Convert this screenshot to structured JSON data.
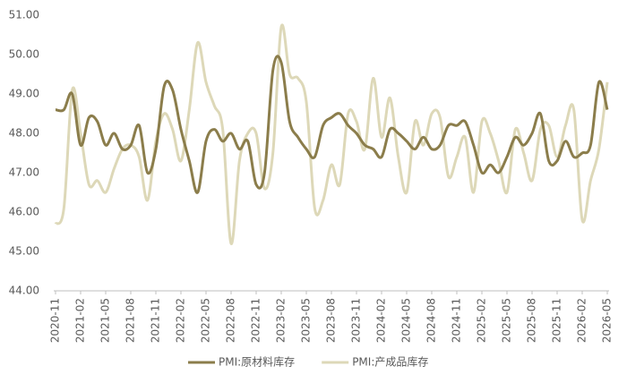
{
  "chart_data": {
    "type": "line",
    "categories": [
      "2020-11",
      null,
      null,
      "2021-02",
      null,
      null,
      "2021-05",
      null,
      null,
      "2021-08",
      null,
      null,
      "2021-11",
      null,
      null,
      "2022-02",
      null,
      null,
      "2022-05",
      null,
      null,
      "2022-08",
      null,
      null,
      "2022-11",
      null,
      null,
      "2023-02",
      null,
      null,
      "2023-05",
      null,
      null,
      "2023-08",
      null,
      null,
      "2023-11",
      null,
      null,
      "2024-02",
      null,
      null,
      "2024-05",
      null,
      null,
      "2024-08",
      null,
      null,
      "2024-11",
      null,
      null,
      "2025-02",
      null,
      null,
      "2025-05",
      null,
      null,
      "2025-08",
      null,
      null,
      "2025-11",
      null,
      null,
      "2026-02",
      null,
      null,
      "2026-05"
    ],
    "series": [
      {
        "name": "PMI:原材料库存",
        "color": "#8b7d4b",
        "values": [
          48.6,
          48.6,
          49.0,
          47.7,
          48.4,
          48.3,
          47.7,
          48.0,
          47.6,
          47.7,
          48.2,
          47.0,
          47.6,
          49.2,
          49.1,
          48.1,
          47.3,
          46.5,
          47.8,
          48.1,
          47.8,
          48.0,
          47.6,
          47.8,
          46.7,
          47.0,
          49.6,
          49.8,
          48.3,
          47.9,
          47.6,
          47.4,
          48.2,
          48.4,
          48.5,
          48.2,
          48.0,
          47.7,
          47.6,
          47.4,
          48.1,
          48.0,
          47.8,
          47.6,
          47.9,
          47.6,
          47.7,
          48.2,
          48.2,
          48.3,
          47.7,
          47.0,
          47.2,
          47.0,
          47.4,
          47.9,
          47.7,
          48.0,
          48.5,
          47.3,
          47.3,
          47.8,
          47.4,
          47.5,
          47.7,
          49.3,
          48.6
        ]
      },
      {
        "name": "PMI:产成品库存",
        "color": "#ddd8b8",
        "values": [
          45.7,
          46.1,
          49.1,
          48.0,
          46.7,
          46.8,
          46.5,
          47.1,
          47.6,
          47.7,
          47.4,
          46.3,
          47.8,
          48.5,
          48.1,
          47.3,
          48.6,
          50.3,
          49.3,
          48.7,
          48.1,
          45.2,
          47.3,
          48.0,
          48.0,
          46.6,
          47.5,
          50.7,
          49.5,
          49.4,
          48.8,
          46.1,
          46.3,
          47.2,
          46.7,
          48.5,
          48.3,
          47.6,
          49.4,
          47.9,
          48.9,
          47.4,
          46.5,
          48.3,
          47.7,
          48.5,
          48.4,
          46.9,
          47.4,
          47.9,
          46.5,
          48.3,
          48.0,
          47.3,
          46.5,
          48.1,
          47.5,
          46.8,
          48.1,
          48.2,
          47.4,
          48.2,
          48.6,
          45.8,
          46.8,
          47.6,
          49.3
        ]
      }
    ],
    "ylim": [
      44,
      51
    ],
    "yticks": [
      {
        "value": 44,
        "label": "44.00"
      },
      {
        "value": 45,
        "label": "45.00"
      },
      {
        "value": 46,
        "label": "46.00"
      },
      {
        "value": 47,
        "label": "47.00"
      },
      {
        "value": 48,
        "label": "48.00"
      },
      {
        "value": 49,
        "label": "49.00"
      },
      {
        "value": 50,
        "label": "50.00"
      },
      {
        "value": 51,
        "label": "51.00"
      }
    ],
    "legend": "bottom"
  }
}
